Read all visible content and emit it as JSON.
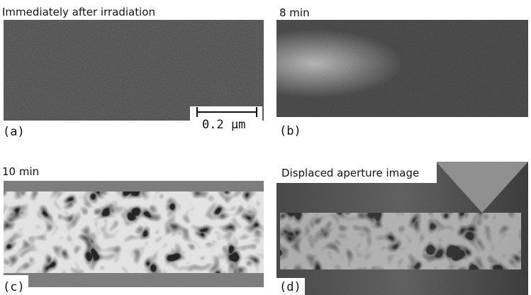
{
  "panels": [
    {
      "title": "Immediately after irradiation",
      "label": "(a)",
      "scale_bar": "0.2 μm"
    },
    {
      "title": "8 min",
      "label": "(b)"
    },
    {
      "title": "10 min",
      "label": "(c)"
    },
    {
      "title": "Displaced aperture image",
      "label": "(d)"
    }
  ]
}
